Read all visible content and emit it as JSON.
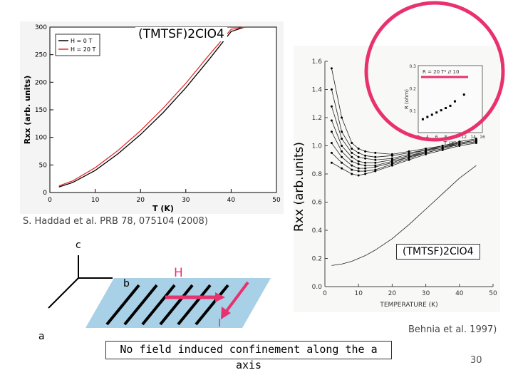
{
  "slide": {
    "page_number": "30",
    "bottom_statement": "No field induced confinement along the a axis",
    "left_citation": "S. Haddad et al. PRB 78, 075104 (2008)",
    "right_citation": "Behnia et al. 1997)",
    "left_compound": "(TMTSF)2ClO4",
    "right_compound": "(TMTSF)2ClO4",
    "rotated_axis_label": "Rxx (arb.units)"
  },
  "axes_schematic": {
    "c": "c",
    "b": "b",
    "a": "a",
    "field": "H",
    "current": "I"
  },
  "colors": {
    "accent_pink": "#e8326e",
    "curve_red": "#e03030",
    "plane_blue": "#a8d0e6"
  },
  "chart_data": [
    {
      "type": "line",
      "title": "",
      "xlabel": "T (K)",
      "ylabel": "Rxx (arb. units)",
      "xlim": [
        0,
        50
      ],
      "ylim": [
        0,
        300
      ],
      "xticks": [
        0,
        10,
        20,
        30,
        40,
        50
      ],
      "yticks": [
        0,
        50,
        100,
        150,
        200,
        250,
        300
      ],
      "legend": {
        "placement": "top-left",
        "entries": [
          "H = 0 T",
          "H = 20 T"
        ]
      },
      "x": [
        2,
        5,
        10,
        15,
        20,
        25,
        30,
        35,
        40,
        43
      ],
      "series": [
        {
          "name": "H = 0 T",
          "values": [
            10,
            18,
            40,
            70,
            105,
            145,
            190,
            240,
            292,
            300
          ]
        },
        {
          "name": "H = 20 T",
          "values": [
            12,
            21,
            45,
            76,
            112,
            153,
            198,
            248,
            296,
            300
          ]
        }
      ]
    },
    {
      "type": "line",
      "title": "",
      "xlabel": "TEMPERATURE (K)",
      "ylabel": "",
      "xlim": [
        0,
        50
      ],
      "ylim": [
        0,
        1.6
      ],
      "xticks": [
        0,
        10,
        20,
        30,
        40,
        50
      ],
      "yticks": [
        0.0,
        0.2,
        0.4,
        0.6,
        0.8,
        1.0,
        1.2,
        1.4,
        1.6
      ],
      "x": [
        2,
        5,
        8,
        10,
        12,
        15,
        20,
        25,
        30,
        35,
        40,
        45
      ],
      "series": [
        {
          "values": [
            1.55,
            1.2,
            1.02,
            0.98,
            0.96,
            0.95,
            0.94,
            0.96,
            0.98,
            1.0,
            1.03,
            1.05
          ]
        },
        {
          "values": [
            1.4,
            1.1,
            0.98,
            0.95,
            0.93,
            0.92,
            0.93,
            0.95,
            0.97,
            1.0,
            1.02,
            1.04
          ]
        },
        {
          "values": [
            1.28,
            1.05,
            0.95,
            0.92,
            0.91,
            0.9,
            0.91,
            0.94,
            0.97,
            0.99,
            1.02,
            1.04
          ]
        },
        {
          "values": [
            1.18,
            1.0,
            0.92,
            0.89,
            0.88,
            0.88,
            0.9,
            0.93,
            0.96,
            0.99,
            1.02,
            1.04
          ]
        },
        {
          "values": [
            1.1,
            0.96,
            0.89,
            0.87,
            0.86,
            0.86,
            0.89,
            0.92,
            0.96,
            0.99,
            1.01,
            1.03
          ]
        },
        {
          "values": [
            1.02,
            0.92,
            0.86,
            0.84,
            0.84,
            0.85,
            0.88,
            0.92,
            0.95,
            0.98,
            1.01,
            1.03
          ]
        },
        {
          "values": [
            0.95,
            0.88,
            0.83,
            0.82,
            0.82,
            0.83,
            0.87,
            0.91,
            0.95,
            0.98,
            1.01,
            1.03
          ]
        },
        {
          "values": [
            0.88,
            0.84,
            0.8,
            0.79,
            0.8,
            0.82,
            0.86,
            0.9,
            0.94,
            0.97,
            1.0,
            1.02
          ]
        },
        {
          "values": [
            0.15,
            0.16,
            0.18,
            0.2,
            0.22,
            0.26,
            0.34,
            0.44,
            0.55,
            0.66,
            0.77,
            0.86
          ]
        }
      ]
    },
    {
      "type": "scatter",
      "title": "",
      "xlabel": "T (K)",
      "ylabel": "R (ohm)",
      "ylim": [
        0,
        0.3
      ],
      "xticks": [
        2,
        4,
        6,
        8,
        10,
        12,
        14,
        16
      ],
      "yticks": [
        0.1,
        0.2,
        0.3
      ],
      "fit_label": "R = 20 T² // 10",
      "x": [
        3,
        4,
        5,
        6,
        7,
        8,
        9,
        10,
        12
      ],
      "values": [
        0.06,
        0.07,
        0.08,
        0.09,
        0.1,
        0.11,
        0.12,
        0.14,
        0.17
      ]
    }
  ]
}
